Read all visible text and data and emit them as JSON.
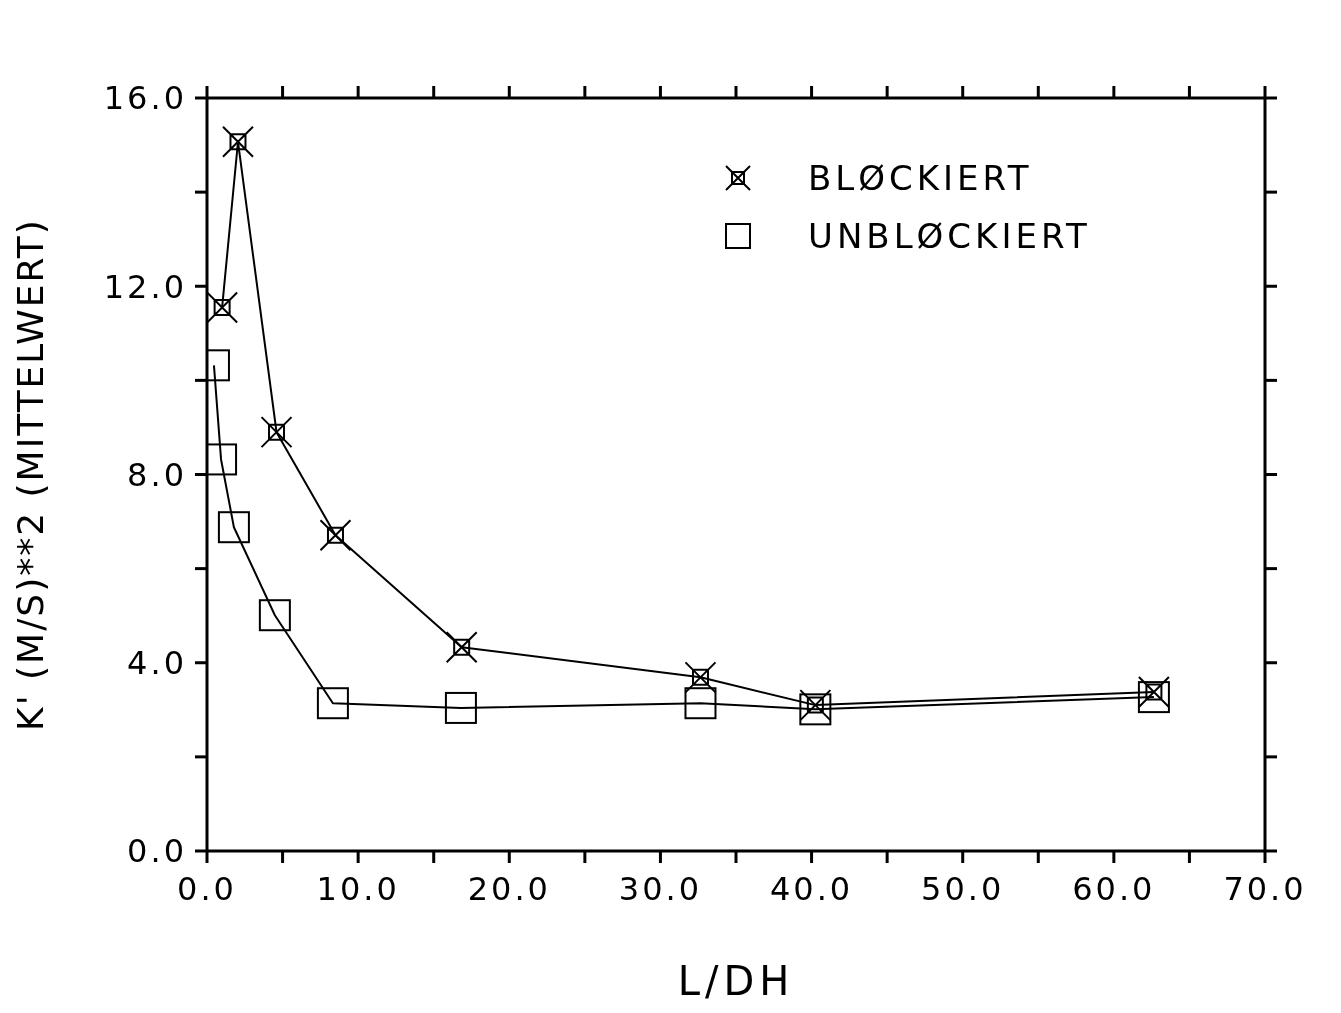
{
  "chart_data": {
    "type": "line",
    "xlabel": "L/DH",
    "ylabel": "K' (M/S)**2 (MITTELWERT)",
    "xlim": [
      0,
      70
    ],
    "xticks": [
      {
        "value": 0,
        "label": "0.0"
      },
      {
        "value": 5,
        "label": null
      },
      {
        "value": 10,
        "label": "10.0"
      },
      {
        "value": 15,
        "label": null
      },
      {
        "value": 20,
        "label": "20.0"
      },
      {
        "value": 25,
        "label": null
      },
      {
        "value": 30,
        "label": "30.0"
      },
      {
        "value": 35,
        "label": null
      },
      {
        "value": 40,
        "label": "40.0"
      },
      {
        "value": 45,
        "label": null
      },
      {
        "value": 50,
        "label": "50.0"
      },
      {
        "value": 55,
        "label": null
      },
      {
        "value": 60,
        "label": "60.0"
      },
      {
        "value": 65,
        "label": null
      },
      {
        "value": 70,
        "label": "70.0"
      }
    ],
    "ylim": [
      0,
      16
    ],
    "yticks": [
      {
        "value": 0,
        "label": "0.0"
      },
      {
        "value": 2,
        "label": null
      },
      {
        "value": 4,
        "label": "4.0"
      },
      {
        "value": 6,
        "label": null
      },
      {
        "value": 8,
        "label": "8.0"
      },
      {
        "value": 10,
        "label": null
      },
      {
        "value": 12,
        "label": "12.0"
      },
      {
        "value": 14,
        "label": null
      },
      {
        "value": 16,
        "label": "16.0"
      }
    ],
    "legend": "top right",
    "series": [
      {
        "name": "BLØCKIERT",
        "color": "#000000",
        "marker": "cross",
        "x": [
          1.0,
          2.05,
          4.6,
          8.5,
          16.85,
          32.65,
          40.25,
          62.65
        ],
        "values": [
          11.55,
          15.07,
          8.9,
          6.71,
          4.33,
          3.69,
          3.1,
          3.38
        ]
      },
      {
        "name": "UNBLØCKIERT",
        "color": "#000000",
        "marker": "square",
        "x": [
          0.46,
          0.93,
          1.78,
          4.49,
          8.33,
          16.8,
          32.65,
          40.25,
          62.65
        ],
        "values": [
          10.32,
          8.32,
          6.88,
          5.01,
          3.14,
          3.04,
          3.14,
          3.01,
          3.27
        ]
      }
    ]
  }
}
